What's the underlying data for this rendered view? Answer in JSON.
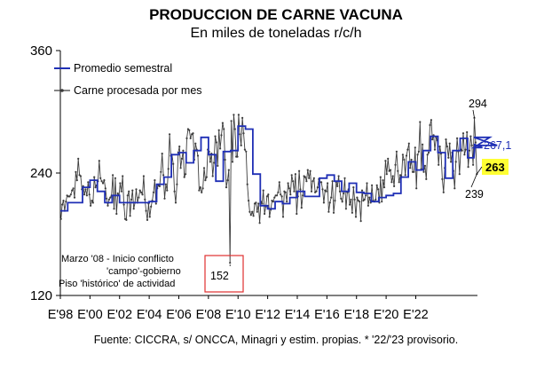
{
  "chart_data": {
    "type": "line",
    "title": "PRODUCCION DE CARNE VACUNA",
    "subtitle": "En miles de toneladas r/c/h",
    "source": "Fuente: CICCRA, s/ ONCCA, Minagri y estim. propias. * '22/'23 provisorio.",
    "xlabel": "",
    "ylabel": "",
    "ylim": [
      120,
      360
    ],
    "yticks": [
      120,
      240,
      360
    ],
    "x_start": "1998-01",
    "x_end": "2023-03",
    "xticks": [
      "E'98",
      "E'00",
      "E'02",
      "E'04",
      "E'06",
      "E'08",
      "E'10",
      "E'12",
      "E'14",
      "E'16",
      "E'18",
      "E'20",
      "E'22"
    ],
    "grid": false,
    "legend_position": "top-left",
    "series": [
      {
        "name": "Promedio semestral",
        "color": "#1f2fb5",
        "frequency": "semiannual",
        "values": [
          203,
          211,
          211,
          226,
          233,
          222,
          211,
          218,
          211,
          211,
          211,
          211,
          212,
          229,
          236,
          258,
          260,
          250,
          262,
          275,
          258,
          232,
          261,
          262,
          286,
          283,
          239,
          208,
          205,
          212,
          210,
          216,
          222,
          217,
          217,
          235,
          238,
          232,
          222,
          230,
          221,
          220,
          212,
          216,
          218,
          220,
          236,
          251,
          243,
          262,
          276,
          260,
          235,
          262,
          274,
          255,
          268,
          265,
          275,
          267
        ]
      },
      {
        "name": "Carne procesada por mes",
        "color": "#3c3c3c",
        "frequency": "monthly",
        "values": [
          195,
          209,
          213,
          203,
          212,
          218,
          217,
          217,
          219,
          223,
          225,
          216,
          241,
          233,
          254,
          238,
          237,
          224,
          227,
          219,
          224,
          218,
          231,
          219,
          208,
          213,
          211,
          236,
          226,
          228,
          232,
          252,
          235,
          232,
          230,
          233,
          225,
          215,
          208,
          214,
          216,
          218,
          238,
          205,
          235,
          200,
          220,
          218,
          230,
          222,
          237,
          209,
          195,
          194,
          218,
          222,
          198,
          214,
          223,
          205,
          211,
          224,
          211,
          216,
          223,
          221,
          219,
          237,
          214,
          203,
          194,
          210,
          197,
          207,
          213,
          221,
          233,
          210,
          225,
          228,
          227,
          241,
          259,
          238,
          215,
          229,
          223,
          244,
          278,
          257,
          258,
          249,
          222,
          211,
          229,
          260,
          266,
          245,
          254,
          262,
          236,
          239,
          274,
          283,
          282,
          274,
          278,
          279,
          253,
          269,
          263,
          257,
          223,
          226,
          221,
          225,
          245,
          233,
          236,
          263,
          261,
          251,
          259,
          237,
          250,
          276,
          270,
          247,
          282,
          264,
          277,
          289,
          283,
          253,
          226,
          233,
          243,
          152,
          291,
          251,
          297,
          283,
          256,
          256,
          297,
          278,
          267,
          294,
          279,
          263,
          261,
          229,
          213,
          202,
          199,
          202,
          198,
          210,
          211,
          202,
          210,
          191,
          212,
          210,
          223,
          200,
          207,
          217,
          219,
          197,
          204,
          213,
          212,
          216,
          218,
          218,
          221,
          231,
          219,
          217,
          197,
          222,
          221,
          212,
          230,
          225,
          219,
          238,
          232,
          222,
          239,
          200,
          217,
          242,
          224,
          206,
          218,
          237,
          236,
          232,
          243,
          235,
          242,
          222,
          232,
          235,
          221,
          222,
          226,
          234,
          231,
          231,
          224,
          211,
          223,
          222,
          230,
          202,
          211,
          216,
          232,
          201,
          213,
          231,
          227,
          237,
          222,
          215,
          212,
          220,
          235,
          205,
          221,
          224,
          209,
          214,
          201,
          226,
          214,
          197,
          216,
          213,
          212,
          193,
          223,
          213,
          214,
          218,
          230,
          208,
          216,
          211,
          228,
          213,
          212,
          214,
          228,
          224,
          211,
          236,
          212,
          233,
          226,
          252,
          239,
          254,
          242,
          243,
          231,
          237,
          227,
          248,
          261,
          242,
          231,
          238,
          236,
          258,
          253,
          238,
          257,
          263,
          269,
          245,
          253,
          241,
          241,
          265,
          225,
          258,
          261,
          290,
          244,
          268,
          241,
          247,
          234,
          258,
          260,
          287,
          292,
          273,
          277,
          263,
          275,
          272,
          248,
          266,
          259,
          234,
          221,
          245,
          273,
          266,
          255,
          269,
          251,
          260,
          242,
          225,
          251,
          274,
          261,
          239,
          263,
          262,
          279,
          258,
          263,
          280,
          246,
          262,
          276,
          267,
          248,
          294,
          270,
          239
        ]
      }
    ],
    "annotations": {
      "max_label": "294",
      "sem_label": "267,1",
      "last_label": "263",
      "last_min_label": "239",
      "note_line1": "Marzo '08 - Inicio conflicto",
      "note_line2": "'campo'-gobierno",
      "note_line3": "Piso 'histórico' de actividad",
      "min_label": "152"
    },
    "colors": {
      "highlight_fill": "#ffff33",
      "box_stroke": "#e03030",
      "axis": "#000000"
    }
  }
}
